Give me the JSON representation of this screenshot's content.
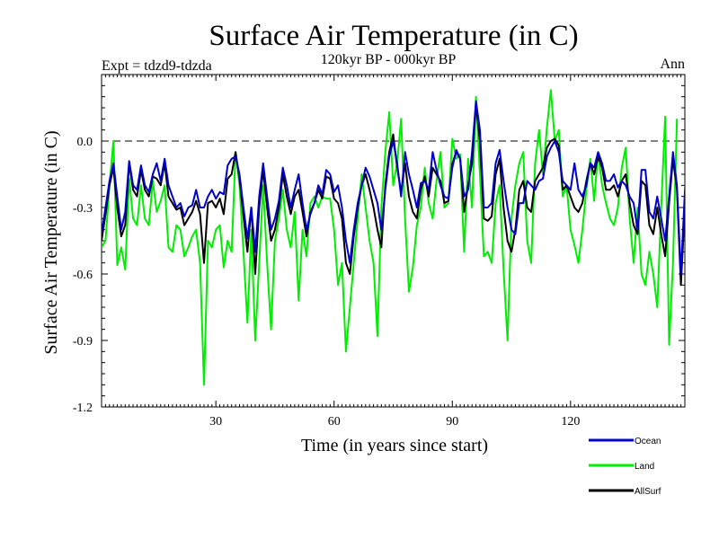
{
  "chart_data": {
    "type": "line",
    "title": "Surface Air Temperature (in C)",
    "subtitle": "120kyr BP - 000kyr BP",
    "experiment_label": "Expt = tdzd9-tdzda",
    "season_label": "Ann",
    "xlabel": "Time (in years since start)",
    "ylabel": "Surface Air Temperature (in C)",
    "xlim": [
      1,
      149
    ],
    "ylim": [
      -1.2,
      0.3
    ],
    "x_ticks": [
      30,
      60,
      90,
      120
    ],
    "x_tick_labels": [
      "30",
      "60",
      "90",
      "120"
    ],
    "y_ticks": [
      -1.2,
      -0.9,
      -0.6,
      -0.3,
      0.0
    ],
    "y_tick_labels": [
      "-1.2",
      "-0.9",
      "-0.6",
      "-0.3",
      "0.0"
    ],
    "reference_line": 0.0,
    "grid": false,
    "legend_position": "bottom-right, outside plot",
    "series": [
      {
        "name": "Ocean",
        "color": "#0000cc",
        "values": [
          -0.42,
          -0.3,
          -0.18,
          -0.1,
          -0.25,
          -0.4,
          -0.32,
          -0.09,
          -0.2,
          -0.22,
          -0.11,
          -0.2,
          -0.23,
          -0.15,
          -0.1,
          -0.18,
          -0.08,
          -0.2,
          -0.25,
          -0.3,
          -0.28,
          -0.34,
          -0.3,
          -0.29,
          -0.22,
          -0.3,
          -0.3,
          -0.25,
          -0.22,
          -0.26,
          -0.23,
          -0.24,
          -0.11,
          -0.08,
          -0.07,
          -0.15,
          -0.3,
          -0.44,
          -0.3,
          -0.5,
          -0.25,
          -0.1,
          -0.25,
          -0.4,
          -0.35,
          -0.27,
          -0.12,
          -0.2,
          -0.3,
          -0.22,
          -0.15,
          -0.28,
          -0.4,
          -0.33,
          -0.28,
          -0.2,
          -0.24,
          -0.13,
          -0.15,
          -0.23,
          -0.2,
          -0.3,
          -0.45,
          -0.55,
          -0.4,
          -0.28,
          -0.2,
          -0.12,
          -0.16,
          -0.22,
          -0.28,
          -0.4,
          -0.22,
          -0.07,
          0.0,
          -0.1,
          -0.25,
          -0.05,
          -0.15,
          -0.22,
          -0.3,
          -0.19,
          -0.18,
          -0.22,
          -0.05,
          -0.13,
          -0.2,
          -0.25,
          -0.26,
          -0.12,
          -0.04,
          -0.08,
          -0.25,
          -0.22,
          -0.05,
          0.18,
          0.05,
          -0.3,
          -0.3,
          -0.28,
          -0.1,
          -0.04,
          -0.18,
          -0.3,
          -0.4,
          -0.42,
          -0.28,
          -0.28,
          -0.18,
          -0.2,
          -0.22,
          -0.18,
          -0.17,
          -0.07,
          -0.03,
          0.0,
          -0.05,
          -0.18,
          -0.2,
          -0.22,
          -0.1,
          -0.22,
          -0.25,
          -0.2,
          -0.1,
          -0.12,
          -0.05,
          -0.1,
          -0.18,
          -0.18,
          -0.15,
          -0.21,
          -0.18,
          -0.2,
          -0.25,
          -0.28,
          -0.4,
          -0.13,
          -0.13,
          -0.32,
          -0.35,
          -0.25,
          -0.35,
          -0.45,
          -0.25,
          -0.05,
          -0.2,
          -0.6,
          -0.23,
          0.05
        ]
      },
      {
        "name": "Land",
        "color": "#00ee00",
        "values": [
          -0.48,
          -0.45,
          -0.2,
          0.0,
          -0.56,
          -0.48,
          -0.58,
          -0.17,
          -0.35,
          -0.38,
          -0.2,
          -0.35,
          -0.38,
          -0.18,
          -0.32,
          -0.27,
          -0.2,
          -0.48,
          -0.5,
          -0.38,
          -0.4,
          -0.52,
          -0.48,
          -0.43,
          -0.4,
          -0.55,
          -1.1,
          -0.45,
          -0.48,
          -0.4,
          -0.38,
          -0.57,
          -0.45,
          -0.5,
          -0.05,
          -0.2,
          -0.5,
          -0.82,
          -0.4,
          -0.9,
          -0.55,
          -0.2,
          -0.55,
          -0.85,
          -0.45,
          -0.35,
          -0.22,
          -0.4,
          -0.48,
          -0.32,
          -0.72,
          -0.4,
          -0.52,
          -0.28,
          -0.25,
          -0.3,
          -0.25,
          -0.26,
          -0.26,
          -0.4,
          -0.65,
          -0.55,
          -0.95,
          -0.75,
          -0.55,
          -0.35,
          -0.15,
          -0.3,
          -0.45,
          -0.55,
          -0.88,
          -0.3,
          -0.05,
          0.13,
          -0.2,
          -0.1,
          0.1,
          -0.35,
          -0.68,
          -0.57,
          -0.38,
          -0.3,
          -0.12,
          -0.28,
          -0.35,
          -0.18,
          -0.05,
          -0.3,
          -0.28,
          0.01,
          -0.08,
          -0.06,
          -0.5,
          -0.08,
          -0.3,
          0.2,
          -0.15,
          -0.52,
          -0.5,
          -0.55,
          -0.28,
          -0.2,
          -0.58,
          -0.9,
          -0.35,
          -0.2,
          -0.1,
          -0.05,
          -0.45,
          -0.55,
          -0.1,
          0.05,
          -0.15,
          0.06,
          0.23,
          0.0,
          0.05,
          -0.25,
          -0.2,
          -0.4,
          -0.47,
          -0.55,
          -0.4,
          -0.22,
          -0.08,
          -0.27,
          -0.05,
          -0.2,
          -0.28,
          -0.35,
          -0.38,
          -0.3,
          -0.12,
          -0.03,
          -0.35,
          -0.55,
          -0.3,
          -0.6,
          -0.65,
          -0.5,
          -0.6,
          -0.75,
          -0.3,
          0.11,
          -0.92,
          -0.55,
          0.1
        ]
      },
      {
        "name": "AllSurf",
        "color": "#000000",
        "values": [
          -0.45,
          -0.33,
          -0.2,
          -0.12,
          -0.3,
          -0.43,
          -0.38,
          -0.1,
          -0.22,
          -0.25,
          -0.13,
          -0.22,
          -0.25,
          -0.16,
          -0.17,
          -0.2,
          -0.1,
          -0.25,
          -0.28,
          -0.31,
          -0.3,
          -0.38,
          -0.35,
          -0.32,
          -0.27,
          -0.33,
          -0.55,
          -0.28,
          -0.27,
          -0.3,
          -0.26,
          -0.33,
          -0.17,
          -0.15,
          -0.05,
          -0.17,
          -0.34,
          -0.5,
          -0.3,
          -0.6,
          -0.3,
          -0.13,
          -0.3,
          -0.45,
          -0.4,
          -0.3,
          -0.15,
          -0.25,
          -0.33,
          -0.25,
          -0.22,
          -0.32,
          -0.43,
          -0.32,
          -0.28,
          -0.22,
          -0.26,
          -0.16,
          -0.17,
          -0.26,
          -0.28,
          -0.35,
          -0.55,
          -0.6,
          -0.43,
          -0.3,
          -0.2,
          -0.15,
          -0.22,
          -0.3,
          -0.4,
          -0.48,
          -0.2,
          -0.05,
          0.03,
          -0.12,
          -0.23,
          -0.1,
          -0.25,
          -0.32,
          -0.35,
          -0.22,
          -0.16,
          -0.25,
          -0.12,
          -0.15,
          -0.18,
          -0.28,
          -0.27,
          -0.1,
          -0.05,
          -0.08,
          -0.32,
          -0.2,
          -0.1,
          0.17,
          0.0,
          -0.35,
          -0.36,
          -0.34,
          -0.15,
          -0.08,
          -0.3,
          -0.45,
          -0.5,
          -0.4,
          -0.22,
          -0.18,
          -0.3,
          -0.32,
          -0.18,
          -0.15,
          -0.12,
          -0.03,
          0.0,
          0.01,
          -0.02,
          -0.22,
          -0.2,
          -0.25,
          -0.3,
          -0.32,
          -0.28,
          -0.18,
          -0.1,
          -0.15,
          -0.07,
          -0.12,
          -0.22,
          -0.22,
          -0.2,
          -0.25,
          -0.18,
          -0.15,
          -0.28,
          -0.38,
          -0.42,
          -0.18,
          -0.2,
          -0.38,
          -0.42,
          -0.3,
          -0.42,
          -0.52,
          -0.28,
          -0.08,
          -0.22,
          -0.65,
          -0.3,
          0.03
        ]
      }
    ]
  }
}
